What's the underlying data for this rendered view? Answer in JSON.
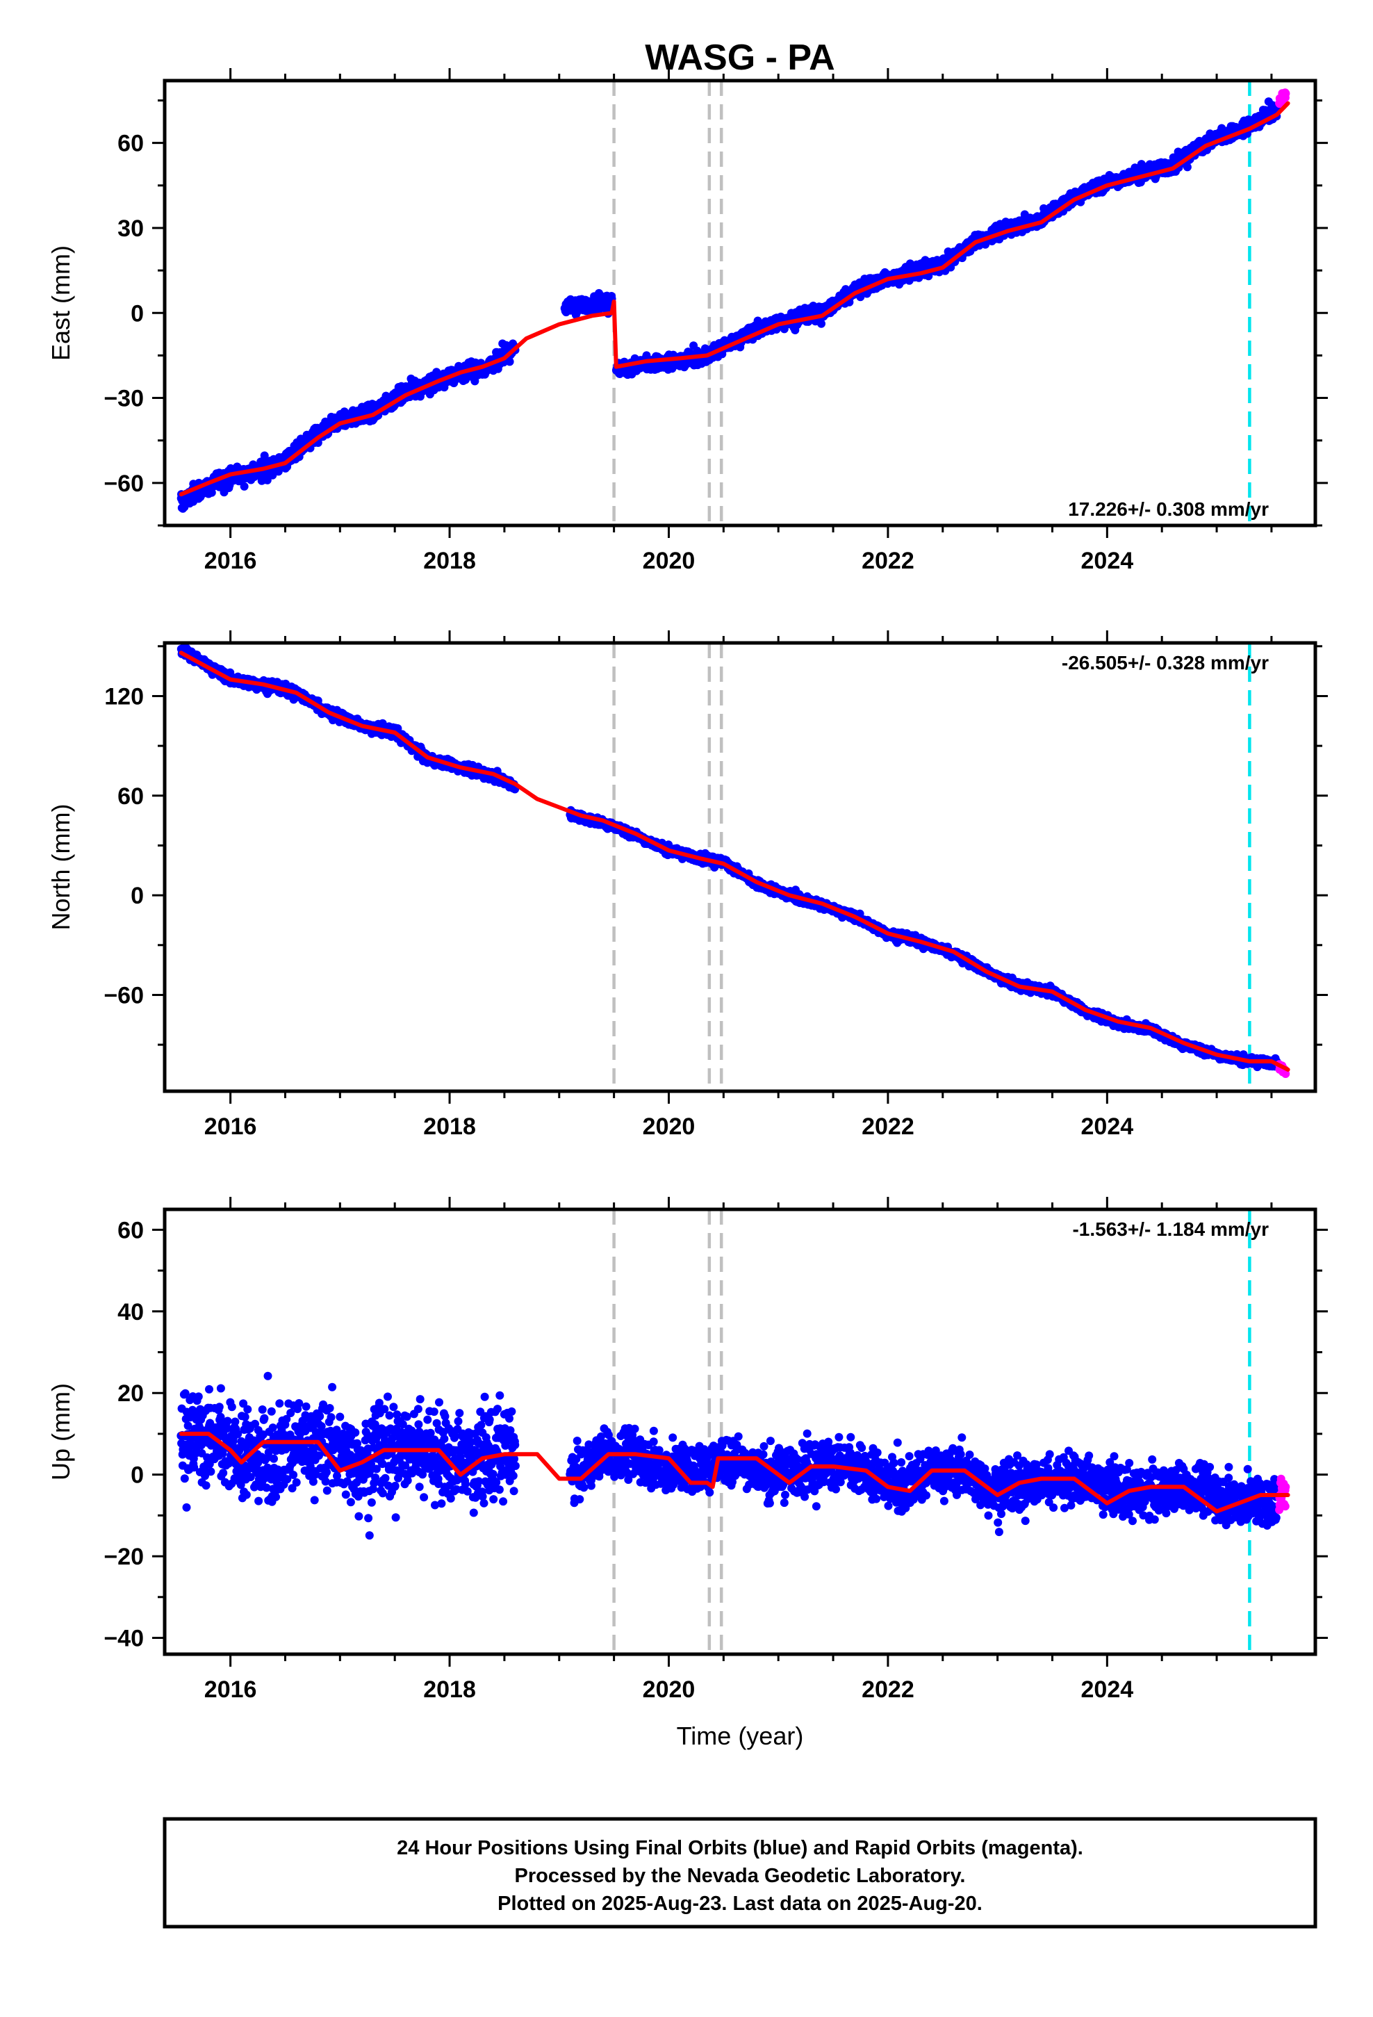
{
  "chart_data": [
    {
      "type": "scatter",
      "title": "WASG - PA",
      "ylabel": "East (mm)",
      "xlim": [
        2015.4,
        2025.9
      ],
      "ylim": [
        -75,
        82
      ],
      "xticks": [
        2016,
        2018,
        2020,
        2022,
        2024
      ],
      "xtick_labels": [
        "2016",
        "2018",
        "2020",
        "2022",
        "2024"
      ],
      "yticks": [
        -60,
        -30,
        0,
        30,
        60
      ],
      "ytick_labels": [
        "−60",
        "−30",
        "0",
        "30",
        "60"
      ],
      "rate_label": "17.226+/- 0.308 mm/yr",
      "rate_position": "bottom-right",
      "series": [
        {
          "color": "#0000ff",
          "style": "points",
          "label": "Final Orbits (blue)",
          "segments": [
            {
              "x": [
                2015.55,
                2015.7,
                2015.9,
                2016.1,
                2016.3,
                2016.5,
                2016.8,
                2017.0,
                2017.3,
                2017.6,
                2017.9,
                2018.1,
                2018.3,
                2018.6
              ],
              "y": [
                -67,
                -63,
                -59,
                -57,
                -56,
                -52,
                -43,
                -38,
                -35,
                -28,
                -24,
                -21,
                -20,
                -12
              ],
              "noise": 3
            },
            {
              "x": [
                2019.05,
                2019.3,
                2019.48
              ],
              "y": [
                2,
                3,
                4
              ],
              "noise": 2.5
            },
            {
              "x": [
                2019.52,
                2019.8,
                2020.1,
                2020.35,
                2020.7,
                2021.0,
                2021.4,
                2021.7,
                2022.0,
                2022.3,
                2022.5,
                2022.8,
                2023.1,
                2023.4,
                2023.7,
                2024.0,
                2024.3,
                2024.6,
                2024.9,
                2025.3,
                2025.55
              ],
              "y": [
                -20,
                -18,
                -17,
                -15,
                -8,
                -3,
                0,
                8,
                12,
                15,
                17,
                25,
                30,
                33,
                41,
                46,
                49,
                52,
                60,
                66,
                72
              ],
              "noise": 2.5
            }
          ]
        },
        {
          "color": "#ff00ff",
          "style": "points",
          "label": "Rapid Orbits (magenta)",
          "segments": [
            {
              "x": [
                2025.57,
                2025.63
              ],
              "y": [
                75,
                77
              ],
              "noise": 1.5
            }
          ]
        },
        {
          "color": "#ff0000",
          "style": "line",
          "label": "model",
          "segments": [
            {
              "x": [
                2015.55,
                2015.8,
                2016.0,
                2016.3,
                2016.5,
                2016.8,
                2017.0,
                2017.3,
                2017.6,
                2017.9,
                2018.1,
                2018.3,
                2018.5,
                2018.7,
                2019.0,
                2019.3,
                2019.48,
                2019.5
              ],
              "y": [
                -64,
                -60,
                -57,
                -55,
                -53,
                -44,
                -39,
                -36,
                -29,
                -24,
                -21,
                -19,
                -16,
                -9,
                -4,
                -1,
                0,
                4
              ]
            },
            {
              "x": [
                2019.5,
                2019.52,
                2019.8,
                2020.1,
                2020.35,
                2020.7,
                2021.0,
                2021.4,
                2021.7,
                2022.0,
                2022.3,
                2022.5,
                2022.8,
                2023.1,
                2023.4,
                2023.7,
                2024.0,
                2024.3,
                2024.6,
                2024.9,
                2025.3,
                2025.55,
                2025.65
              ],
              "y": [
                4,
                -19,
                -17,
                -16,
                -15,
                -9,
                -4,
                -1,
                7,
                12,
                14,
                16,
                25,
                29,
                32,
                40,
                45,
                48,
                51,
                59,
                65,
                70,
                74
              ]
            }
          ]
        }
      ],
      "vlines": [
        {
          "x": 2019.5,
          "color": "#c0c0c0"
        },
        {
          "x": 2020.37,
          "color": "#c0c0c0"
        },
        {
          "x": 2020.48,
          "color": "#c0c0c0"
        },
        {
          "x": 2025.3,
          "color": "#00e5ee"
        }
      ]
    },
    {
      "type": "scatter",
      "ylabel": "North (mm)",
      "xlim": [
        2015.4,
        2025.9
      ],
      "ylim": [
        -118,
        152
      ],
      "xticks": [
        2016,
        2018,
        2020,
        2022,
        2024
      ],
      "xtick_labels": [
        "2016",
        "2018",
        "2020",
        "2022",
        "2024"
      ],
      "yticks": [
        -60,
        0,
        60,
        120
      ],
      "ytick_labels": [
        "−60",
        "0",
        "60",
        "120"
      ],
      "rate_label": "-26.505+/- 0.328 mm/yr",
      "rate_position": "top-right",
      "series": [
        {
          "color": "#0000ff",
          "style": "points",
          "label": "Final Orbits (blue)",
          "segments": [
            {
              "x": [
                2015.55,
                2015.8,
                2016.0,
                2016.3,
                2016.6,
                2016.9,
                2017.2,
                2017.5,
                2017.8,
                2018.1,
                2018.4,
                2018.6
              ],
              "y": [
                148,
                138,
                130,
                127,
                122,
                110,
                102,
                98,
                82,
                77,
                72,
                66
              ],
              "noise": 3
            },
            {
              "x": [
                2019.1,
                2019.4,
                2019.7,
                2020.0,
                2020.3,
                2020.5,
                2020.8,
                2021.1,
                2021.4,
                2021.7,
                2022.0,
                2022.3,
                2022.6,
                2022.9,
                2023.2,
                2023.5,
                2023.8,
                2024.1,
                2024.4,
                2024.7,
                2025.0,
                2025.3,
                2025.55
              ],
              "y": [
                48,
                44,
                36,
                27,
                22,
                20,
                7,
                0,
                -6,
                -13,
                -23,
                -28,
                -35,
                -46,
                -55,
                -58,
                -70,
                -77,
                -81,
                -90,
                -96,
                -100,
                -101
              ],
              "noise": 2.5
            }
          ]
        },
        {
          "color": "#ff00ff",
          "style": "points",
          "label": "Rapid Orbits (magenta)",
          "segments": [
            {
              "x": [
                2025.57,
                2025.63
              ],
              "y": [
                -103,
                -107
              ],
              "noise": 1.5
            }
          ]
        },
        {
          "color": "#ff0000",
          "style": "line",
          "label": "model",
          "segments": [
            {
              "x": [
                2015.55,
                2015.8,
                2016.0,
                2016.3,
                2016.6,
                2016.9,
                2017.2,
                2017.5,
                2017.8,
                2018.1,
                2018.4,
                2018.6,
                2018.8,
                2019.0,
                2019.2,
                2019.4,
                2019.7,
                2020.0,
                2020.3,
                2020.5,
                2020.8,
                2021.1,
                2021.4,
                2021.7,
                2022.0,
                2022.3,
                2022.6,
                2022.9,
                2023.2,
                2023.5,
                2023.8,
                2024.1,
                2024.4,
                2024.7,
                2025.0,
                2025.3,
                2025.5,
                2025.65
              ],
              "y": [
                146,
                137,
                130,
                127,
                122,
                110,
                102,
                98,
                83,
                77,
                73,
                67,
                58,
                53,
                48,
                45,
                37,
                27,
                22,
                19,
                8,
                0,
                -5,
                -13,
                -23,
                -28,
                -34,
                -46,
                -55,
                -58,
                -69,
                -76,
                -80,
                -89,
                -96,
                -100,
                -100,
                -105
              ]
            }
          ]
        }
      ],
      "vlines": [
        {
          "x": 2019.5,
          "color": "#c0c0c0"
        },
        {
          "x": 2020.37,
          "color": "#c0c0c0"
        },
        {
          "x": 2020.48,
          "color": "#c0c0c0"
        },
        {
          "x": 2025.3,
          "color": "#00e5ee"
        }
      ]
    },
    {
      "type": "scatter",
      "ylabel": "Up (mm)",
      "xlabel": "Time (year)",
      "xlim": [
        2015.4,
        2025.9
      ],
      "ylim": [
        -44,
        65
      ],
      "xticks": [
        2016,
        2018,
        2020,
        2022,
        2024
      ],
      "xtick_labels": [
        "2016",
        "2018",
        "2020",
        "2022",
        "2024"
      ],
      "yticks": [
        -40,
        -20,
        0,
        20,
        40,
        60
      ],
      "ytick_labels": [
        "−40",
        "−20",
        "0",
        "20",
        "40",
        "60"
      ],
      "rate_label": "-1.563+/- 1.184 mm/yr",
      "rate_position": "top-right",
      "series": [
        {
          "color": "#0000ff",
          "style": "points",
          "label": "Final Orbits (blue)",
          "segments": [
            {
              "x": [
                2015.55,
                2015.8,
                2016.0,
                2016.3,
                2016.6,
                2016.9,
                2017.2,
                2017.5,
                2017.8,
                2018.0,
                2018.3,
                2018.6
              ],
              "y": [
                10,
                9,
                7,
                4,
                8,
                7,
                3,
                6,
                7,
                3,
                4,
                6
              ],
              "noise": 11
            },
            {
              "x": [
                2019.1,
                2019.4,
                2019.7,
                2020.0,
                2020.3,
                2020.6,
                2020.9,
                2021.2,
                2021.5,
                2021.8,
                2022.1,
                2022.4,
                2022.7,
                2023.0,
                2023.3,
                2023.6,
                2023.9,
                2024.2,
                2024.5,
                2024.8,
                2025.1,
                2025.4,
                2025.55
              ],
              "y": [
                -1,
                5,
                5,
                1,
                2,
                4,
                0,
                1,
                3,
                1,
                -3,
                1,
                1,
                -4,
                -2,
                -1,
                -2,
                -5,
                -4,
                -3,
                -6,
                -7,
                -6
              ],
              "noise": 6
            }
          ]
        },
        {
          "color": "#ff00ff",
          "style": "points",
          "label": "Rapid Orbits (magenta)",
          "segments": [
            {
              "x": [
                2025.57,
                2025.63
              ],
              "y": [
                -5,
                -3
              ],
              "noise": 5
            }
          ]
        },
        {
          "color": "#ff0000",
          "style": "line",
          "label": "model",
          "segments": [
            {
              "x": [
                2015.55,
                2015.8,
                2016.0,
                2016.1,
                2016.3,
                2016.5,
                2016.8,
                2017.0,
                2017.2,
                2017.4,
                2017.7,
                2017.9,
                2018.1,
                2018.3,
                2018.5,
                2018.8,
                2019.0,
                2019.2,
                2019.45,
                2019.7,
                2020.0,
                2020.2,
                2020.35,
                2020.4,
                2020.45,
                2020.5,
                2020.8,
                2021.1,
                2021.3,
                2021.5,
                2021.8,
                2022.0,
                2022.2,
                2022.4,
                2022.7,
                2023.0,
                2023.2,
                2023.4,
                2023.7,
                2024.0,
                2024.2,
                2024.4,
                2024.7,
                2025.0,
                2025.2,
                2025.4,
                2025.65
              ],
              "y": [
                10,
                10,
                6,
                3,
                8,
                8,
                8,
                1,
                3,
                6,
                6,
                6,
                0,
                4,
                5,
                5,
                -1,
                -1,
                5,
                5,
                4,
                -2,
                -2,
                -3,
                4,
                4,
                4,
                -2,
                2,
                2,
                1,
                -3,
                -4,
                1,
                1,
                -5,
                -2,
                -1,
                -1,
                -7,
                -4,
                -3,
                -3,
                -9,
                -7,
                -5,
                -5
              ]
            }
          ]
        }
      ],
      "vlines": [
        {
          "x": 2019.5,
          "color": "#c0c0c0"
        },
        {
          "x": 2020.37,
          "color": "#c0c0c0"
        },
        {
          "x": 2020.48,
          "color": "#c0c0c0"
        },
        {
          "x": 2025.3,
          "color": "#00e5ee"
        }
      ]
    }
  ],
  "footer": {
    "line1": "24 Hour Positions Using Final Orbits (blue) and Rapid Orbits (magenta).",
    "line2": "Processed by the Nevada Geodetic Laboratory.",
    "line3": "Plotted on 2025-Aug-23. Last data on 2025-Aug-20."
  }
}
